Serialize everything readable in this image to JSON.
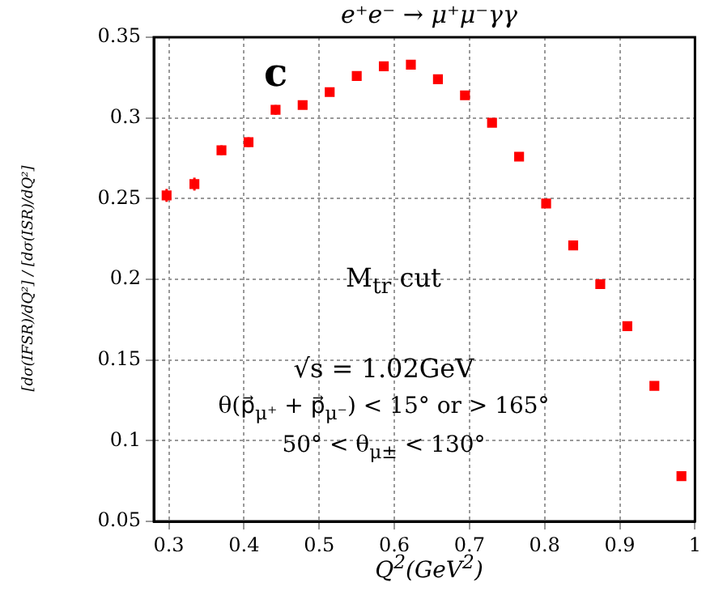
{
  "chart_data": {
    "type": "scatter",
    "title": "e⁺e⁻ → μ⁺μ⁻γγ",
    "xlabel": "Q$^{2}$(GeV$^{2}$)",
    "ylabel": "[dσ(IFSR)/dQ²] / [dσ(ISR)/dQ²]",
    "annotations": [
      "c",
      "M$_{tr}$ cut",
      "√s = 1.02GeV",
      "θ(p⃗$_{μ⁺}$ + p⃗$_{μ⁻}$) < 15° or > 165°",
      "50° < θ$_{μ±}$ < 130°"
    ],
    "x": [
      0.297,
      0.334,
      0.37,
      0.406,
      0.442,
      0.478,
      0.514,
      0.55,
      0.586,
      0.622,
      0.658,
      0.694,
      0.73,
      0.766,
      0.802,
      0.838,
      0.874,
      0.91,
      0.946,
      0.982
    ],
    "series": [
      {
        "color": "#ff0000",
        "values": [
          0.252,
          0.259,
          0.28,
          0.285,
          0.305,
          0.308,
          0.316,
          0.326,
          0.332,
          0.333,
          0.324,
          0.314,
          0.297,
          0.276,
          0.247,
          0.221,
          0.197,
          0.171,
          0.134,
          0.078
        ],
        "errors": [
          0.004,
          0.004,
          0.003,
          0.003,
          0.003,
          null,
          null,
          null,
          null,
          null,
          null,
          null,
          null,
          null,
          null,
          null,
          null,
          null,
          null,
          null
        ]
      }
    ],
    "xlim": [
      0.28,
      1.0
    ],
    "xticks": [
      0.3,
      0.4,
      0.5,
      0.6,
      0.7,
      0.8,
      0.9,
      {
        "value": 1.0,
        "label": "1"
      }
    ],
    "ylim": [
      0.05,
      0.35
    ],
    "yticks": [
      0.05,
      0.1,
      0.15,
      0.2,
      0.25,
      0.3,
      0.35
    ],
    "grid": true,
    "legend": false,
    "marker": "square"
  }
}
